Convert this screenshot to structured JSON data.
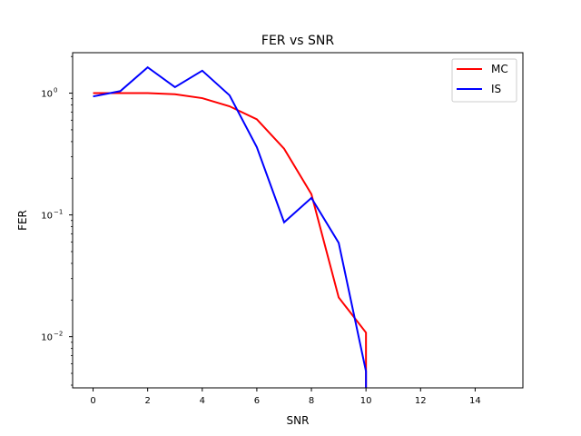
{
  "chart_data": {
    "type": "line",
    "title": "FER vs SNR",
    "xlabel": "SNR",
    "ylabel": "FER",
    "yscale": "log",
    "xlim": [
      -0.75,
      15.75
    ],
    "ylim": [
      0.0038,
      2.15
    ],
    "x_ticks": [
      0,
      2,
      4,
      6,
      8,
      10,
      12,
      14
    ],
    "x_tick_labels": [
      "0",
      "2",
      "4",
      "6",
      "8",
      "10",
      "12",
      "14"
    ],
    "y_ticks": [
      0.01,
      0.1,
      1
    ],
    "y_tick_labels": [
      "10",
      "10",
      "10"
    ],
    "y_tick_exponents": [
      "−2",
      "−1",
      "0"
    ],
    "grid": false,
    "legend_position": "top-right",
    "series": [
      {
        "name": "MC",
        "color": "#ff0000",
        "x": [
          0,
          1,
          2,
          3,
          4,
          5,
          6,
          7,
          8,
          9,
          10,
          10
        ],
        "values": [
          1.0,
          1.0,
          1.0,
          0.98,
          0.91,
          0.78,
          0.61,
          0.35,
          0.148,
          0.021,
          0.0108,
          0.0038
        ]
      },
      {
        "name": "IS",
        "color": "#0000ff",
        "x": [
          0,
          1,
          2,
          3,
          4,
          5,
          6,
          7,
          8,
          9,
          10,
          10
        ],
        "values": [
          0.94,
          1.04,
          1.63,
          1.12,
          1.53,
          0.96,
          0.36,
          0.087,
          0.138,
          0.059,
          0.0052,
          0.0038
        ]
      }
    ]
  }
}
